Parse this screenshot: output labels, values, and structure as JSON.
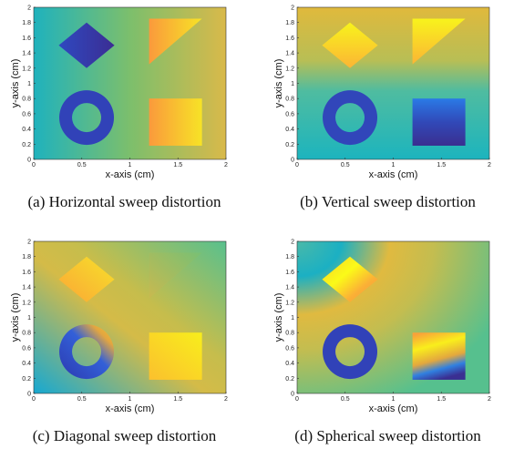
{
  "chart_data": [
    {
      "type": "image",
      "caption": "(a) Horizontal sweep distortion",
      "xlabel": "x-axis (cm)",
      "ylabel": "y-axis (cm)",
      "xlim": [
        0,
        2
      ],
      "ylim": [
        0,
        2
      ],
      "xticks": [
        0,
        0.5,
        1,
        1.5,
        2
      ],
      "yticks": [
        0,
        0.2,
        0.4,
        0.6,
        0.8,
        1,
        1.2,
        1.4,
        1.6,
        1.8,
        2
      ]
    },
    {
      "type": "image",
      "caption": "(b) Vertical sweep distortion",
      "xlabel": "x-axis (cm)",
      "ylabel": "y-axis (cm)",
      "xlim": [
        0,
        2
      ],
      "ylim": [
        0,
        2
      ],
      "xticks": [
        0,
        0.5,
        1,
        1.5,
        2
      ],
      "yticks": [
        0,
        0.2,
        0.4,
        0.6,
        0.8,
        1,
        1.2,
        1.4,
        1.6,
        1.8,
        2
      ]
    },
    {
      "type": "image",
      "caption": "(c) Diagonal sweep distortion",
      "xlabel": "x-axis (cm)",
      "ylabel": "y-axis (cm)",
      "xlim": [
        0,
        2
      ],
      "ylim": [
        0,
        2
      ],
      "xticks": [
        0,
        0.5,
        1,
        1.5,
        2
      ],
      "yticks": [
        0,
        0.2,
        0.4,
        0.6,
        0.8,
        1,
        1.2,
        1.4,
        1.6,
        1.8,
        2
      ]
    },
    {
      "type": "image",
      "caption": "(d) Spherical sweep distortion",
      "xlabel": "x-axis (cm)",
      "ylabel": "y-axis (cm)",
      "xlim": [
        0,
        2
      ],
      "ylim": [
        0,
        2
      ],
      "xticks": [
        0,
        0.5,
        1,
        1.5,
        2
      ],
      "yticks": [
        0,
        0.2,
        0.4,
        0.6,
        0.8,
        1,
        1.2,
        1.4,
        1.6,
        1.8,
        2
      ]
    }
  ]
}
